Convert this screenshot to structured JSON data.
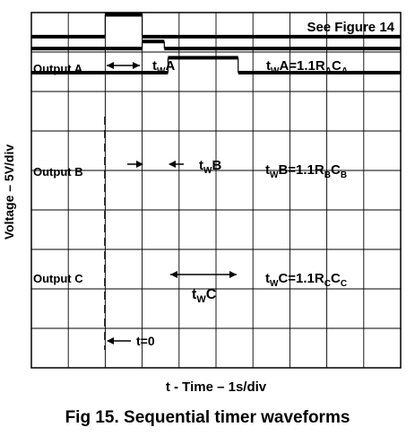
{
  "figure": {
    "caption": "Fig 15. Sequential timer waveforms",
    "figure_ref": "See Figure 14"
  },
  "chart_data": {
    "type": "line",
    "title": "",
    "xlabel": "t - Time – 1s/div",
    "ylabel": "Voltage – 5V/div",
    "grid": true,
    "xlim": [
      0,
      10
    ],
    "ylim": [
      -9,
      0
    ],
    "time_zero_marker": {
      "label": "t=0",
      "x": 2.0
    },
    "series": [
      {
        "name": "Output A",
        "low": -5.5,
        "high": -0.5,
        "x": [
          0,
          2.0,
          2.0,
          3.0,
          3.0,
          10
        ],
        "y": [
          -5.5,
          -5.5,
          -0.5,
          -0.5,
          -5.5,
          -5.5
        ],
        "pulse_label": "tWA",
        "formula": "tWA=1.1RACA"
      },
      {
        "name": "Output B",
        "low": -8.2,
        "high": -6.6,
        "x": [
          0,
          3.0,
          3.0,
          3.6,
          3.6,
          10
        ],
        "y": [
          -8.2,
          -8.2,
          -6.6,
          -6.6,
          -8.2,
          -8.2
        ],
        "pulse_label": "tWB",
        "formula": "tWB=1.1RBCB"
      },
      {
        "name": "Output C",
        "low": -13.7,
        "high": -10.3,
        "x": [
          0,
          3.7,
          3.7,
          5.6,
          5.6,
          10
        ],
        "y": [
          -13.7,
          -13.7,
          -10.3,
          -10.3,
          -13.7,
          -13.7
        ],
        "pulse_label": "tWC",
        "formula": "tWC=1.1RCCC"
      }
    ]
  }
}
